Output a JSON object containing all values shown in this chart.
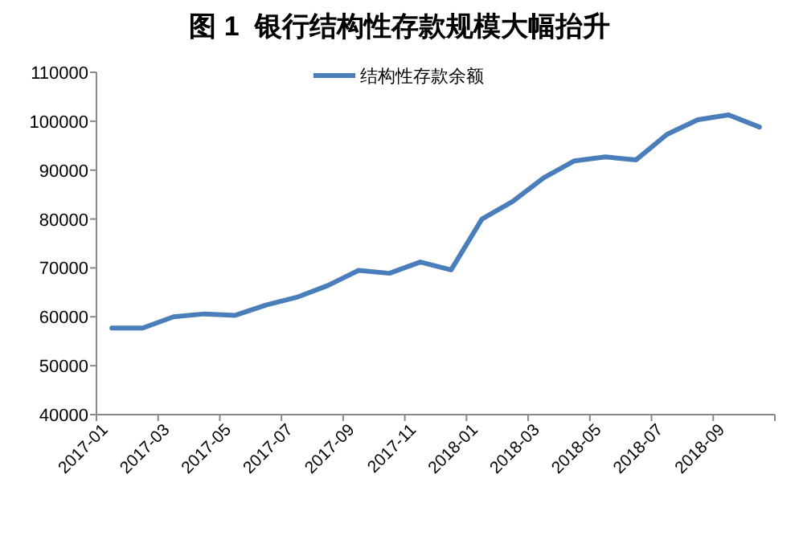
{
  "chart_data": {
    "type": "line",
    "title": "图 1  银行结构性存款规模大幅抬升",
    "categories": [
      "2017-01",
      null,
      "2017-03",
      null,
      "2017-05",
      null,
      "2017-07",
      null,
      "2017-09",
      null,
      "2017-11",
      null,
      "2018-01",
      null,
      "2018-03",
      null,
      "2018-05",
      null,
      "2018-07",
      null,
      "2018-09",
      null
    ],
    "series": [
      {
        "name": "结构性存款余额",
        "color": "#4a7ebb",
        "values": [
          57700,
          57700,
          60000,
          60600,
          60300,
          62400,
          64000,
          66400,
          69500,
          68900,
          71200,
          69600,
          80000,
          83600,
          88400,
          91900,
          92700,
          92100,
          97300,
          100300,
          101300,
          98800
        ]
      }
    ],
    "ylim": [
      40000,
      110000
    ],
    "yticks": [
      40000,
      50000,
      60000,
      70000,
      80000,
      90000,
      100000,
      110000
    ],
    "grid": false,
    "legend": "top",
    "marker": "none",
    "line_style": "solid"
  }
}
